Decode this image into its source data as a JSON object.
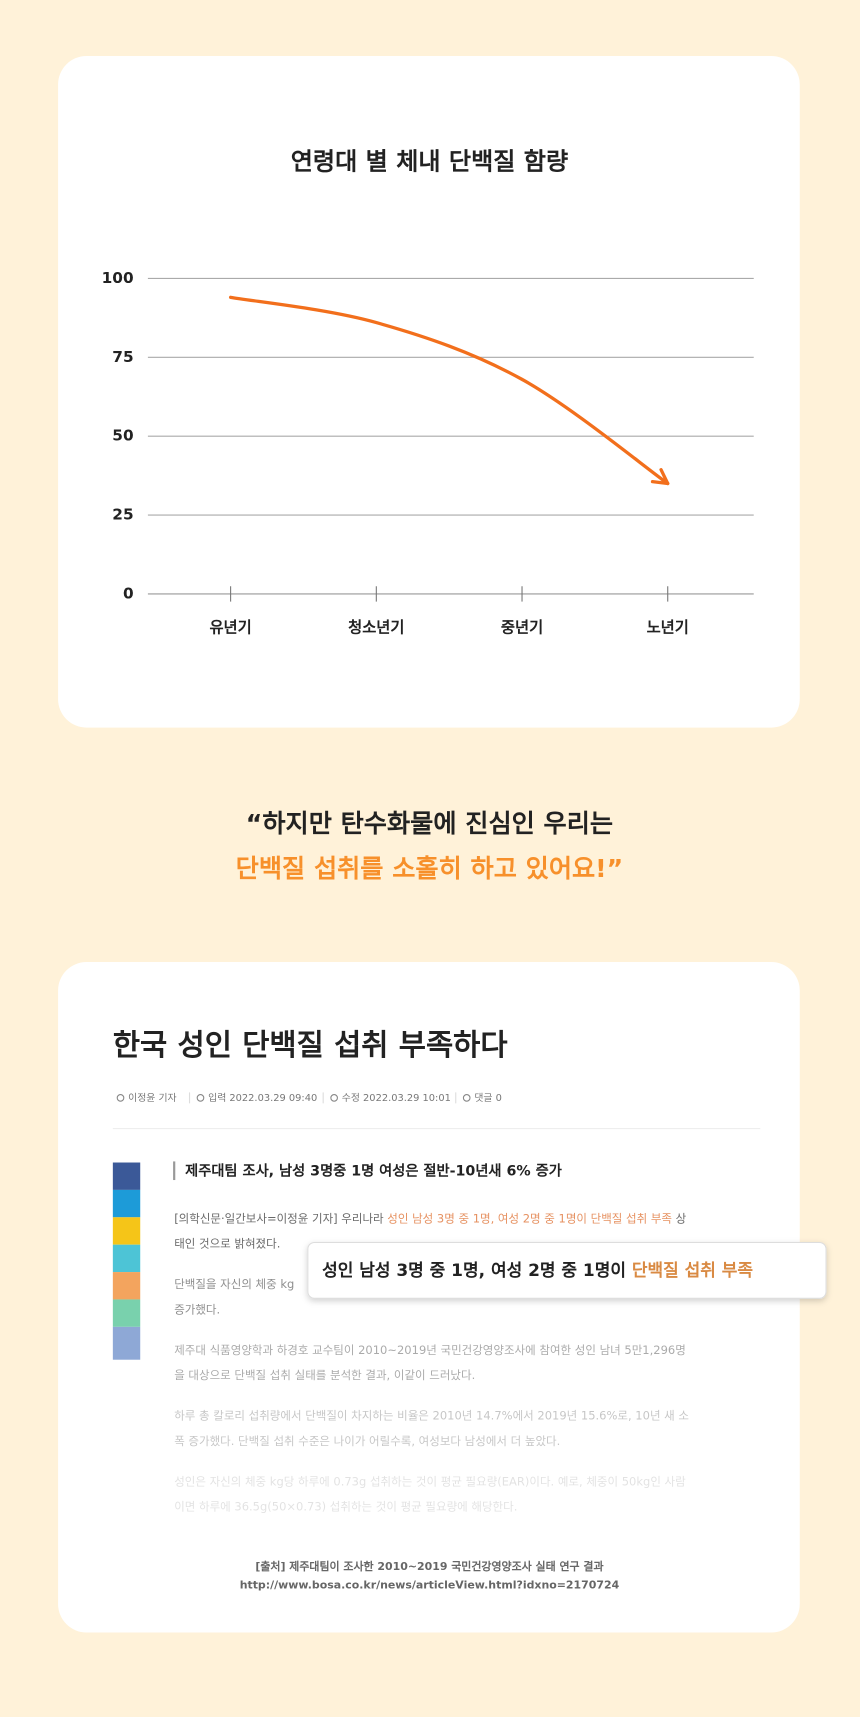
{
  "chart_data": {
    "type": "line",
    "title": "연령대 별 체내 단백질 함량",
    "categories": [
      "유년기",
      "청소년기",
      "중년기",
      "노년기"
    ],
    "values": [
      94,
      86,
      68,
      35
    ],
    "color": "#f26f1c",
    "ylim": [
      0,
      100
    ],
    "yticks": [
      0,
      25,
      50,
      75,
      100
    ],
    "grid": true
  },
  "quote": {
    "lines": [
      "“하지만 탄수화물에 진심인 우리는",
      "단백질 섭취를 소홀히 하고 있어요!”"
    ]
  },
  "article": {
    "title": "한국 성인 단백질 섭취 부족하다",
    "meta": [
      "이정윤 기자",
      "입력 2022.03.29 09:40",
      "수정 2022.03.29 10:01",
      "댓글 0"
    ],
    "subtitle": "제주대팀 조사, 남성 3명중 1명 여성은 절반-10년새 6% 증가",
    "paragraphs": [
      [
        [
          "[의학신문·일간보사=이정윤 기자] 우리나라 ",
          {
            "text": "성인 남성 3명 중 1명, 여성 2명 중 1명이 단백질 섭취 부족",
            "highlight": true
          },
          " 상"
        ],
        [
          "태인 것으로 밝혀졌다."
        ]
      ],
      [
        [
          "단백질을 자신의 체중 kg"
        ],
        [
          "증가했다."
        ]
      ],
      [
        [
          "제주대 식품영양학과 하경호 교수팀이 2010~2019년 국민건강영양조사에 참여한 성인 남녀 5만1,296명"
        ],
        [
          "을 대상으로 단백질 섭취 실태를 분석한 결과, 이같이 드러났다."
        ]
      ],
      [
        [
          "하루 총 칼로리 섭취량에서 단백질이 차지하는 비율은 2010년 14.7%에서 2019년 15.6%로, 10년 새 소"
        ],
        [
          "폭 증가했다. 단백질 섭취 수준은 나이가 어릴수록, 여성보다 남성에서 더 높았다."
        ]
      ],
      [
        [
          "성인은 자신의 체중 kg당 하루에 0.73g 섭취하는 것이 평균 필요량(EAR)이다. 예로, 체중이 50kg인 사람"
        ],
        [
          "이면 하루에 36.5g(50×0.73) 섭취하는 것이 평균 필요량에 해당한다."
        ]
      ]
    ],
    "callout": {
      "text": "성인 남성 3명 중 1명, 여성 2명 중 1명이 ",
      "highlight": "단백질 섭취 부족"
    },
    "source": [
      "[출처] 제주대팀이 조사한 2010~2019 국민건강영양조사 실태 연구 결과",
      "http://www.bosa.co.kr/news/articleView.html?idxno=2170724"
    ]
  }
}
